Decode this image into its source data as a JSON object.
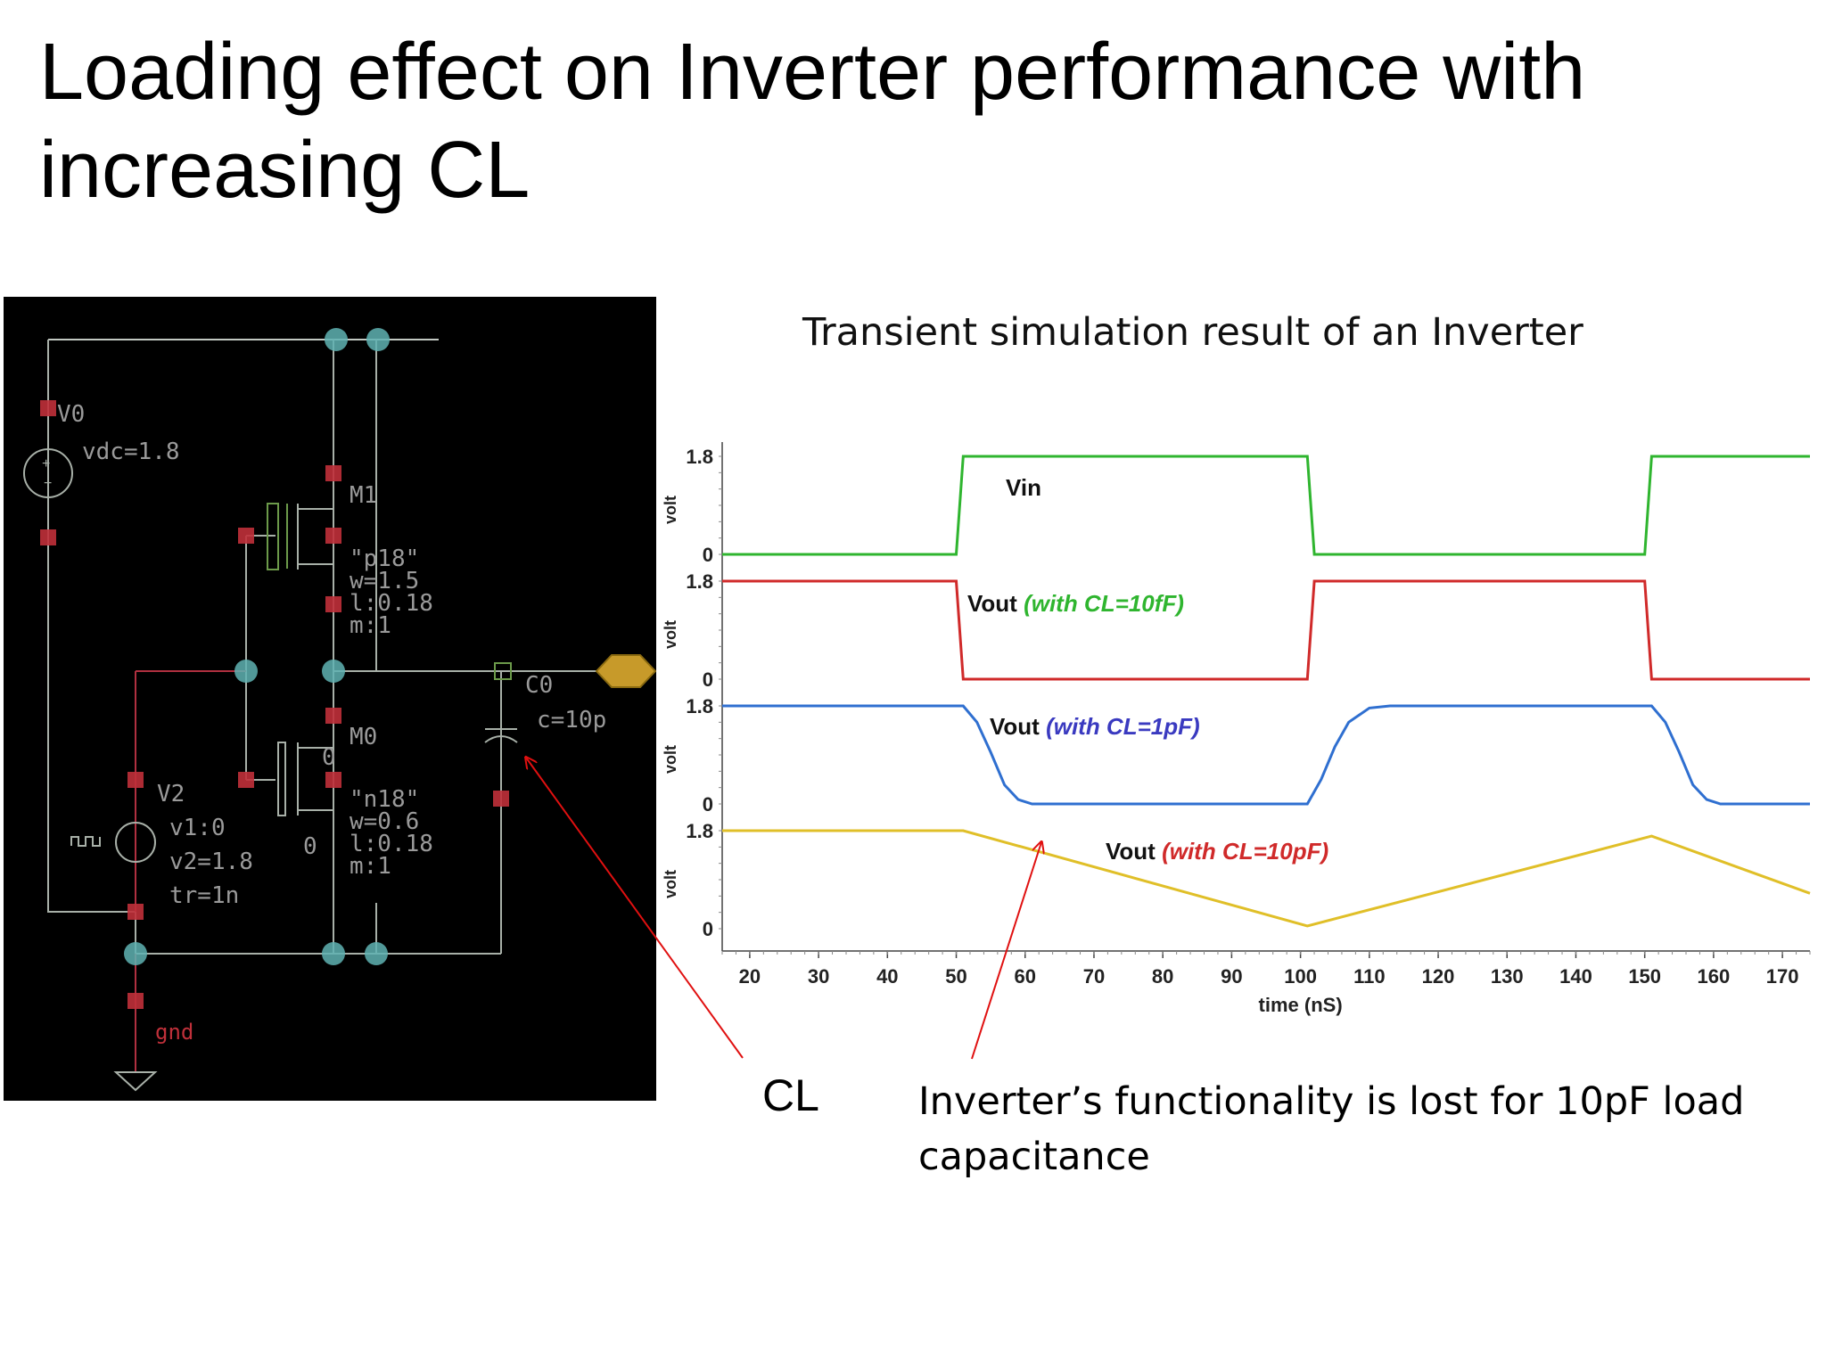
{
  "title": "Loading effect on Inverter performance with increasing CL",
  "schematic": {
    "v0_name": "V0",
    "v0_param": "vdc=1.8",
    "m1_name": "M1",
    "m1_model": "\"p18\"",
    "m1_w": "w=1.5",
    "m1_l": "l:0.18",
    "m1_m": "m:1",
    "m0_name": "M0",
    "m0_model": "\"n18\"",
    "m0_w": "w=0.6",
    "m0_l": "l:0.18",
    "m0_m": "m:1",
    "c0_name": "C0",
    "c0_param": "c=10p",
    "v2_name": "V2",
    "v2_v1": "v1:0",
    "v2_v2": "v2=1.8",
    "v2_tr": "tr=1n",
    "gnd_label": "gnd",
    "node_zero_a": "0",
    "node_zero_b": "0",
    "wire_color": "#a8b0a8",
    "vdd_color": "#c2c8c2",
    "node_color": "#5fb3b3",
    "pin_color": "#c0303a",
    "text_color": "#9a9a9a",
    "red_wire": "#b03040",
    "green_wire": "#6c9a4a"
  },
  "chart_caption": "Transient simulation result of an Inverter",
  "chart_data": {
    "type": "line",
    "xlabel": "time (nS)",
    "ylabel": "volt",
    "xlim": [
      16,
      174
    ],
    "ylim": [
      0,
      1.8
    ],
    "x_ticks": [
      20,
      30,
      40,
      50,
      60,
      70,
      80,
      90,
      100,
      110,
      120,
      130,
      140,
      150,
      160,
      170
    ],
    "y_ticks": [
      "0",
      "1.8"
    ],
    "grid": false,
    "panels": [
      {
        "label": "Vin",
        "label_suffix": "",
        "suffix_color": "#000000",
        "color": "#2fb52f",
        "points": [
          [
            16,
            0
          ],
          [
            50,
            0
          ],
          [
            51,
            1.8
          ],
          [
            101,
            1.8
          ],
          [
            102,
            0
          ],
          [
            150,
            0
          ],
          [
            151,
            1.8
          ],
          [
            174,
            1.8
          ]
        ]
      },
      {
        "label": "Vout",
        "label_suffix": "(with CL=10fF)",
        "suffix_color": "#2fb52f",
        "color": "#d02a2a",
        "points": [
          [
            16,
            1.8
          ],
          [
            50,
            1.8
          ],
          [
            51,
            0
          ],
          [
            101,
            0
          ],
          [
            102,
            1.8
          ],
          [
            150,
            1.8
          ],
          [
            151,
            0
          ],
          [
            174,
            0
          ]
        ]
      },
      {
        "label": "Vout",
        "label_suffix": "(with CL=1pF)",
        "suffix_color": "#3a3ac0",
        "color": "#2f6fd0",
        "points": [
          [
            16,
            1.8
          ],
          [
            51,
            1.8
          ],
          [
            53,
            1.5
          ],
          [
            55,
            0.95
          ],
          [
            57,
            0.35
          ],
          [
            59,
            0.08
          ],
          [
            61,
            0
          ],
          [
            101,
            0
          ],
          [
            103,
            0.45
          ],
          [
            105,
            1.05
          ],
          [
            107,
            1.5
          ],
          [
            110,
            1.76
          ],
          [
            113,
            1.8
          ],
          [
            151,
            1.8
          ],
          [
            153,
            1.5
          ],
          [
            155,
            0.95
          ],
          [
            157,
            0.35
          ],
          [
            159,
            0.08
          ],
          [
            161,
            0
          ],
          [
            174,
            0
          ]
        ]
      },
      {
        "label": "Vout",
        "label_suffix": "(with CL=10pF)",
        "suffix_color": "#d02a2a",
        "color": "#e0bf28",
        "points": [
          [
            16,
            1.8
          ],
          [
            51,
            1.8
          ],
          [
            101,
            0.05
          ],
          [
            151,
            1.7
          ],
          [
            174,
            0.65
          ]
        ]
      }
    ]
  },
  "cl_label": "CL",
  "note": "Inverter’s functionality is lost for 10pF load capacitance"
}
